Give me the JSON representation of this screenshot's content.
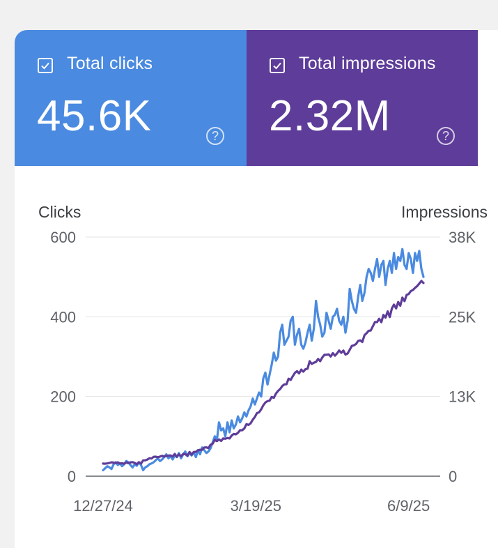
{
  "metrics": {
    "clicks": {
      "label": "Total clicks",
      "value": "45.6K",
      "color": "#4a8ae0",
      "help_icon": "help-circle-icon",
      "checkbox_icon": "checkbox-checked-icon"
    },
    "impressions": {
      "label": "Total impressions",
      "value": "2.32M",
      "color": "#5e3c99",
      "help_icon": "help-circle-icon",
      "checkbox_icon": "checkbox-checked-icon"
    }
  },
  "chart_data": {
    "type": "line",
    "xlabel": "",
    "ylabel": "Clicks",
    "y2label": "Impressions",
    "x_tick_labels": [
      "12/27/24",
      "3/19/25",
      "6/9/25"
    ],
    "y_ticks": [
      0,
      200,
      400,
      600
    ],
    "y_tick_labels": [
      "0",
      "200",
      "400",
      "600"
    ],
    "y2_ticks": [
      0,
      12667,
      25333,
      38000
    ],
    "y2_tick_labels": [
      "0",
      "13K",
      "25K",
      "38K"
    ],
    "ylim": [
      0,
      600
    ],
    "y2lim": [
      0,
      38000
    ],
    "grid": true,
    "legend": "none",
    "x_start": "12/27/24",
    "x_end": "6/17/25",
    "series": [
      {
        "name": "Clicks",
        "color": "#4a8ae0",
        "axis": "left",
        "values": [
          15,
          20,
          25,
          22,
          18,
          30,
          35,
          28,
          32,
          25,
          30,
          38,
          35,
          28,
          22,
          30,
          26,
          35,
          28,
          15,
          22,
          25,
          30,
          32,
          35,
          40,
          45,
          38,
          42,
          48,
          55,
          45,
          50,
          42,
          52,
          48,
          58,
          45,
          55,
          62,
          50,
          58,
          52,
          60,
          48,
          65,
          55,
          72,
          65,
          58,
          62,
          70,
          85,
          100,
          90,
          135,
          115,
          120,
          100,
          135,
          110,
          140,
          120,
          130,
          150,
          135,
          145,
          160,
          150,
          165,
          175,
          195,
          180,
          195,
          210,
          200,
          245,
          260,
          230,
          255,
          280,
          310,
          290,
          300,
          360,
          380,
          330,
          340,
          350,
          390,
          400,
          330,
          355,
          370,
          330,
          320,
          335,
          360,
          380,
          340,
          370,
          440,
          400,
          380,
          350,
          360,
          410,
          390,
          370,
          400,
          405,
          420,
          390,
          380,
          400,
          360,
          390,
          470,
          440,
          420,
          410,
          450,
          480,
          440,
          460,
          500,
          520,
          510,
          490,
          520,
          545,
          500,
          530,
          540,
          480,
          520,
          540,
          510,
          560,
          520,
          550,
          540,
          570,
          530,
          520,
          560,
          545,
          510,
          560,
          540,
          565,
          520,
          500
        ]
      },
      {
        "name": "Impressions",
        "color": "#5e3c99",
        "axis": "right",
        "values": [
          2000,
          1980,
          2030,
          2110,
          2200,
          2160,
          2080,
          2200,
          2020,
          2060,
          1980,
          2180,
          2070,
          2200,
          2240,
          2100,
          1900,
          2230,
          2000,
          2500,
          2520,
          2650,
          2860,
          2800,
          3080,
          3100,
          3000,
          3110,
          3230,
          3120,
          3200,
          3280,
          3300,
          3130,
          3530,
          3080,
          3470,
          3190,
          3530,
          3490,
          3270,
          3840,
          3420,
          3830,
          3870,
          4110,
          4200,
          4200,
          4560,
          4580,
          4460,
          5000,
          5170,
          5770,
          5560,
          5840,
          5590,
          6000,
          5950,
          6070,
          5990,
          6460,
          6710,
          6650,
          6900,
          7310,
          7300,
          7590,
          8260,
          8150,
          8400,
          8970,
          9410,
          10030,
          10140,
          10630,
          11270,
          11710,
          11930,
          12000,
          12600,
          12450,
          13130,
          13550,
          13850,
          14310,
          14590,
          14600,
          15490,
          15300,
          15890,
          16420,
          16680,
          16330,
          16940,
          16610,
          17000,
          17080,
          18270,
          17840,
          18040,
          18150,
          18630,
          18270,
          18870,
          19290,
          19290,
          19360,
          19010,
          19550,
          19150,
          19510,
          19980,
          19600,
          19960,
          19330,
          19500,
          20090,
          20690,
          20800,
          21010,
          21490,
          21580,
          21330,
          22400,
          22720,
          23110,
          23150,
          23840,
          24510,
          24480,
          25020,
          24460,
          25620,
          25190,
          26190,
          25290,
          26640,
          27260,
          26650,
          27670,
          27090,
          28370,
          27820,
          28810,
          28950,
          29410,
          29590,
          29920,
          30200,
          30600,
          31020,
          30700
        ]
      }
    ]
  }
}
